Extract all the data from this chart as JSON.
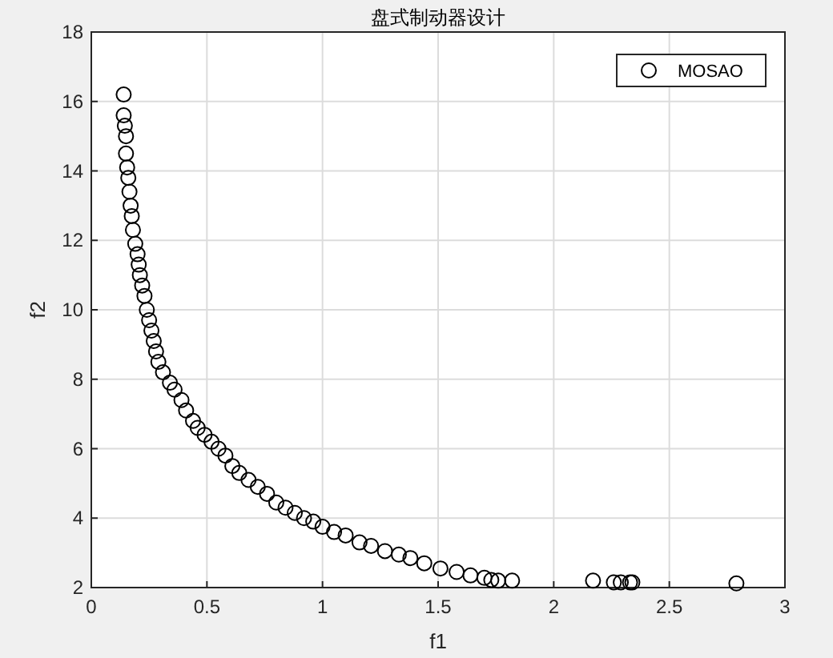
{
  "chart_data": {
    "type": "scatter",
    "title": "盘式制动器设计",
    "xlabel": "f1",
    "ylabel": "f2",
    "xlim": [
      0,
      3
    ],
    "ylim": [
      2,
      18
    ],
    "xticks": [
      0,
      0.5,
      1,
      1.5,
      2,
      2.5,
      3
    ],
    "yticks": [
      2,
      4,
      6,
      8,
      10,
      12,
      14,
      16,
      18
    ],
    "grid": true,
    "legend": "top right",
    "marker": "circle",
    "series": [
      {
        "name": "MOSAO",
        "color": "#000000",
        "x": [
          0.14,
          0.14,
          0.145,
          0.15,
          0.15,
          0.155,
          0.16,
          0.165,
          0.17,
          0.175,
          0.18,
          0.19,
          0.2,
          0.205,
          0.21,
          0.22,
          0.23,
          0.24,
          0.25,
          0.26,
          0.27,
          0.28,
          0.29,
          0.31,
          0.34,
          0.36,
          0.39,
          0.41,
          0.44,
          0.46,
          0.49,
          0.52,
          0.55,
          0.58,
          0.61,
          0.64,
          0.68,
          0.72,
          0.76,
          0.8,
          0.84,
          0.88,
          0.92,
          0.96,
          1.0,
          1.05,
          1.1,
          1.16,
          1.21,
          1.27,
          1.33,
          1.38,
          1.44,
          1.51,
          1.58,
          1.64,
          1.7,
          1.73,
          1.76,
          1.82,
          2.17,
          2.26,
          2.29,
          2.33,
          2.34,
          2.79
        ],
        "values": [
          16.2,
          15.6,
          15.3,
          15.0,
          14.5,
          14.1,
          13.8,
          13.4,
          13.0,
          12.7,
          12.3,
          11.9,
          11.6,
          11.3,
          11.0,
          10.7,
          10.4,
          10.0,
          9.7,
          9.4,
          9.1,
          8.8,
          8.5,
          8.2,
          7.9,
          7.7,
          7.4,
          7.1,
          6.8,
          6.6,
          6.4,
          6.2,
          6.0,
          5.8,
          5.5,
          5.3,
          5.1,
          4.9,
          4.7,
          4.45,
          4.3,
          4.15,
          4.0,
          3.9,
          3.75,
          3.6,
          3.5,
          3.3,
          3.2,
          3.05,
          2.95,
          2.85,
          2.7,
          2.55,
          2.45,
          2.35,
          2.28,
          2.22,
          2.2,
          2.2,
          2.2,
          2.15,
          2.15,
          2.15,
          2.15,
          2.12
        ]
      }
    ]
  }
}
